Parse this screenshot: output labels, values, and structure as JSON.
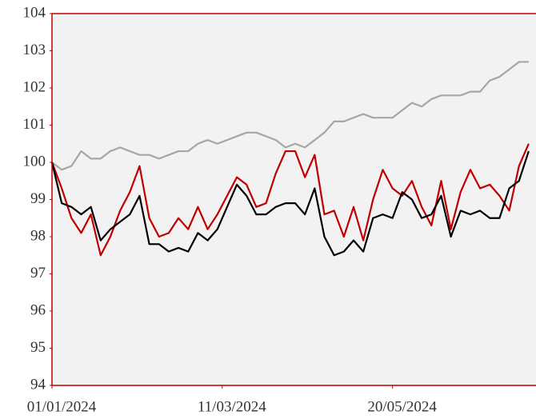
{
  "chart_data": {
    "type": "line",
    "x": [
      "01/01/2024",
      "05/01/2024",
      "09/01/2024",
      "13/01/2024",
      "17/01/2024",
      "21/01/2024",
      "25/01/2024",
      "29/01/2024",
      "02/02/2024",
      "06/02/2024",
      "10/02/2024",
      "14/02/2024",
      "18/02/2024",
      "22/02/2024",
      "26/02/2024",
      "01/03/2024",
      "05/03/2024",
      "09/03/2024",
      "13/03/2024",
      "17/03/2024",
      "21/03/2024",
      "25/03/2024",
      "29/03/2024",
      "02/04/2024",
      "06/04/2024",
      "10/04/2024",
      "14/04/2024",
      "18/04/2024",
      "22/04/2024",
      "26/04/2024",
      "30/04/2024",
      "04/05/2024",
      "08/05/2024",
      "12/05/2024",
      "16/05/2024",
      "20/05/2024",
      "24/05/2024",
      "28/05/2024",
      "01/06/2024",
      "05/06/2024",
      "09/06/2024",
      "13/06/2024",
      "17/06/2024",
      "21/06/2024",
      "25/06/2024",
      "29/06/2024",
      "03/07/2024",
      "07/07/2024",
      "11/07/2024",
      "15/07/2024"
    ],
    "series": [
      {
        "color": "#a6a6a6",
        "values": [
          100.0,
          99.8,
          99.9,
          100.3,
          100.1,
          100.1,
          100.3,
          100.4,
          100.3,
          100.2,
          100.2,
          100.1,
          100.2,
          100.3,
          100.3,
          100.5,
          100.6,
          100.5,
          100.6,
          100.7,
          100.8,
          100.8,
          100.7,
          100.6,
          100.4,
          100.5,
          100.4,
          100.6,
          100.8,
          101.1,
          101.1,
          101.2,
          101.3,
          101.2,
          101.2,
          101.2,
          101.4,
          101.6,
          101.5,
          101.7,
          101.8,
          101.8,
          101.8,
          101.9,
          101.9,
          102.2,
          102.3,
          102.5,
          102.7,
          102.7
        ]
      },
      {
        "color": "#c00000",
        "values": [
          100.0,
          99.3,
          98.5,
          98.1,
          98.6,
          97.5,
          98.0,
          98.7,
          99.2,
          99.9,
          98.5,
          98.0,
          98.1,
          98.5,
          98.2,
          98.8,
          98.2,
          98.6,
          99.1,
          99.6,
          99.4,
          98.8,
          98.9,
          99.7,
          100.3,
          100.3,
          99.6,
          100.2,
          98.6,
          98.7,
          98.0,
          98.8,
          97.9,
          99.0,
          99.8,
          99.3,
          99.1,
          99.5,
          98.8,
          98.3,
          99.5,
          98.2,
          99.2,
          99.8,
          99.3,
          99.4,
          99.1,
          98.7,
          99.9,
          100.5
        ]
      },
      {
        "color": "#000000",
        "values": [
          100.0,
          98.9,
          98.8,
          98.6,
          98.8,
          97.9,
          98.2,
          98.4,
          98.6,
          99.1,
          97.8,
          97.8,
          97.6,
          97.7,
          97.6,
          98.1,
          97.9,
          98.2,
          98.8,
          99.4,
          99.1,
          98.6,
          98.6,
          98.8,
          98.9,
          98.9,
          98.6,
          99.3,
          98.0,
          97.5,
          97.6,
          97.9,
          97.6,
          98.5,
          98.6,
          98.5,
          99.2,
          99.0,
          98.5,
          98.6,
          99.1,
          98.0,
          98.7,
          98.6,
          98.7,
          98.5,
          98.5,
          99.3,
          99.5,
          100.3
        ]
      }
    ],
    "xlim": [
      "01/01/2024",
      "18/07/2024"
    ],
    "xticks": [
      "01/01/2024",
      "11/03/2024",
      "20/05/2024"
    ],
    "ylim": [
      94,
      104
    ],
    "yticks": [
      94,
      95,
      96,
      97,
      98,
      99,
      100,
      101,
      102,
      103,
      104
    ],
    "background": "#f2f2f2",
    "frame_color": "#c00000"
  }
}
